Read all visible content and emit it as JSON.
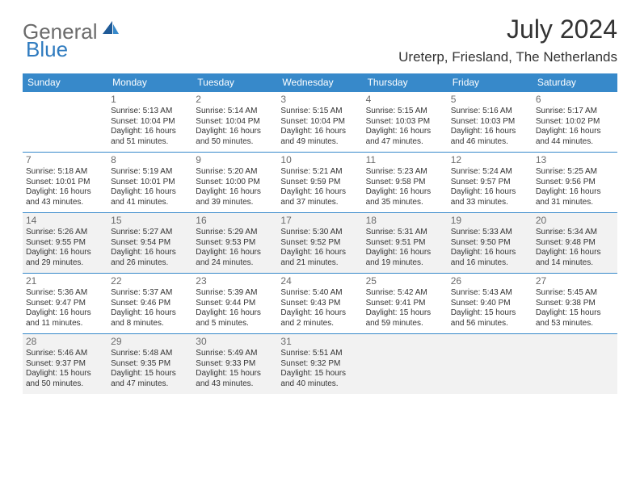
{
  "brand": {
    "part1": "General",
    "part2": "Blue"
  },
  "title": "July 2024",
  "location": "Ureterp, Friesland, The Netherlands",
  "colors": {
    "header_bg": "#3789ca",
    "header_fg": "#ffffff",
    "shade_bg": "#f2f2f2",
    "text": "#333333",
    "muted": "#6b6b6b",
    "brand_blue": "#2f7bbf"
  },
  "day_headers": [
    "Sunday",
    "Monday",
    "Tuesday",
    "Wednesday",
    "Thursday",
    "Friday",
    "Saturday"
  ],
  "weeks": [
    {
      "shaded": false,
      "days": [
        null,
        {
          "n": "1",
          "sunrise": "Sunrise: 5:13 AM",
          "sunset": "Sunset: 10:04 PM",
          "d1": "Daylight: 16 hours",
          "d2": "and 51 minutes."
        },
        {
          "n": "2",
          "sunrise": "Sunrise: 5:14 AM",
          "sunset": "Sunset: 10:04 PM",
          "d1": "Daylight: 16 hours",
          "d2": "and 50 minutes."
        },
        {
          "n": "3",
          "sunrise": "Sunrise: 5:15 AM",
          "sunset": "Sunset: 10:04 PM",
          "d1": "Daylight: 16 hours",
          "d2": "and 49 minutes."
        },
        {
          "n": "4",
          "sunrise": "Sunrise: 5:15 AM",
          "sunset": "Sunset: 10:03 PM",
          "d1": "Daylight: 16 hours",
          "d2": "and 47 minutes."
        },
        {
          "n": "5",
          "sunrise": "Sunrise: 5:16 AM",
          "sunset": "Sunset: 10:03 PM",
          "d1": "Daylight: 16 hours",
          "d2": "and 46 minutes."
        },
        {
          "n": "6",
          "sunrise": "Sunrise: 5:17 AM",
          "sunset": "Sunset: 10:02 PM",
          "d1": "Daylight: 16 hours",
          "d2": "and 44 minutes."
        }
      ]
    },
    {
      "shaded": false,
      "days": [
        {
          "n": "7",
          "sunrise": "Sunrise: 5:18 AM",
          "sunset": "Sunset: 10:01 PM",
          "d1": "Daylight: 16 hours",
          "d2": "and 43 minutes."
        },
        {
          "n": "8",
          "sunrise": "Sunrise: 5:19 AM",
          "sunset": "Sunset: 10:01 PM",
          "d1": "Daylight: 16 hours",
          "d2": "and 41 minutes."
        },
        {
          "n": "9",
          "sunrise": "Sunrise: 5:20 AM",
          "sunset": "Sunset: 10:00 PM",
          "d1": "Daylight: 16 hours",
          "d2": "and 39 minutes."
        },
        {
          "n": "10",
          "sunrise": "Sunrise: 5:21 AM",
          "sunset": "Sunset: 9:59 PM",
          "d1": "Daylight: 16 hours",
          "d2": "and 37 minutes."
        },
        {
          "n": "11",
          "sunrise": "Sunrise: 5:23 AM",
          "sunset": "Sunset: 9:58 PM",
          "d1": "Daylight: 16 hours",
          "d2": "and 35 minutes."
        },
        {
          "n": "12",
          "sunrise": "Sunrise: 5:24 AM",
          "sunset": "Sunset: 9:57 PM",
          "d1": "Daylight: 16 hours",
          "d2": "and 33 minutes."
        },
        {
          "n": "13",
          "sunrise": "Sunrise: 5:25 AM",
          "sunset": "Sunset: 9:56 PM",
          "d1": "Daylight: 16 hours",
          "d2": "and 31 minutes."
        }
      ]
    },
    {
      "shaded": true,
      "days": [
        {
          "n": "14",
          "sunrise": "Sunrise: 5:26 AM",
          "sunset": "Sunset: 9:55 PM",
          "d1": "Daylight: 16 hours",
          "d2": "and 29 minutes."
        },
        {
          "n": "15",
          "sunrise": "Sunrise: 5:27 AM",
          "sunset": "Sunset: 9:54 PM",
          "d1": "Daylight: 16 hours",
          "d2": "and 26 minutes."
        },
        {
          "n": "16",
          "sunrise": "Sunrise: 5:29 AM",
          "sunset": "Sunset: 9:53 PM",
          "d1": "Daylight: 16 hours",
          "d2": "and 24 minutes."
        },
        {
          "n": "17",
          "sunrise": "Sunrise: 5:30 AM",
          "sunset": "Sunset: 9:52 PM",
          "d1": "Daylight: 16 hours",
          "d2": "and 21 minutes."
        },
        {
          "n": "18",
          "sunrise": "Sunrise: 5:31 AM",
          "sunset": "Sunset: 9:51 PM",
          "d1": "Daylight: 16 hours",
          "d2": "and 19 minutes."
        },
        {
          "n": "19",
          "sunrise": "Sunrise: 5:33 AM",
          "sunset": "Sunset: 9:50 PM",
          "d1": "Daylight: 16 hours",
          "d2": "and 16 minutes."
        },
        {
          "n": "20",
          "sunrise": "Sunrise: 5:34 AM",
          "sunset": "Sunset: 9:48 PM",
          "d1": "Daylight: 16 hours",
          "d2": "and 14 minutes."
        }
      ]
    },
    {
      "shaded": false,
      "days": [
        {
          "n": "21",
          "sunrise": "Sunrise: 5:36 AM",
          "sunset": "Sunset: 9:47 PM",
          "d1": "Daylight: 16 hours",
          "d2": "and 11 minutes."
        },
        {
          "n": "22",
          "sunrise": "Sunrise: 5:37 AM",
          "sunset": "Sunset: 9:46 PM",
          "d1": "Daylight: 16 hours",
          "d2": "and 8 minutes."
        },
        {
          "n": "23",
          "sunrise": "Sunrise: 5:39 AM",
          "sunset": "Sunset: 9:44 PM",
          "d1": "Daylight: 16 hours",
          "d2": "and 5 minutes."
        },
        {
          "n": "24",
          "sunrise": "Sunrise: 5:40 AM",
          "sunset": "Sunset: 9:43 PM",
          "d1": "Daylight: 16 hours",
          "d2": "and 2 minutes."
        },
        {
          "n": "25",
          "sunrise": "Sunrise: 5:42 AM",
          "sunset": "Sunset: 9:41 PM",
          "d1": "Daylight: 15 hours",
          "d2": "and 59 minutes."
        },
        {
          "n": "26",
          "sunrise": "Sunrise: 5:43 AM",
          "sunset": "Sunset: 9:40 PM",
          "d1": "Daylight: 15 hours",
          "d2": "and 56 minutes."
        },
        {
          "n": "27",
          "sunrise": "Sunrise: 5:45 AM",
          "sunset": "Sunset: 9:38 PM",
          "d1": "Daylight: 15 hours",
          "d2": "and 53 minutes."
        }
      ]
    },
    {
      "shaded": true,
      "days": [
        {
          "n": "28",
          "sunrise": "Sunrise: 5:46 AM",
          "sunset": "Sunset: 9:37 PM",
          "d1": "Daylight: 15 hours",
          "d2": "and 50 minutes."
        },
        {
          "n": "29",
          "sunrise": "Sunrise: 5:48 AM",
          "sunset": "Sunset: 9:35 PM",
          "d1": "Daylight: 15 hours",
          "d2": "and 47 minutes."
        },
        {
          "n": "30",
          "sunrise": "Sunrise: 5:49 AM",
          "sunset": "Sunset: 9:33 PM",
          "d1": "Daylight: 15 hours",
          "d2": "and 43 minutes."
        },
        {
          "n": "31",
          "sunrise": "Sunrise: 5:51 AM",
          "sunset": "Sunset: 9:32 PM",
          "d1": "Daylight: 15 hours",
          "d2": "and 40 minutes."
        },
        null,
        null,
        null
      ]
    }
  ]
}
